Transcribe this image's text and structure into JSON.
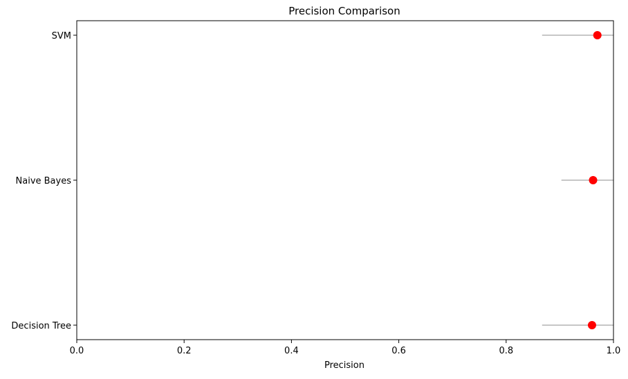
{
  "chart_data": {
    "type": "scatter",
    "title": "Precision Comparison",
    "xlabel": "Precision",
    "ylabel": "",
    "xlim": [
      0.0,
      1.0
    ],
    "x_ticks": [
      "0.0",
      "0.2",
      "0.4",
      "0.6",
      "0.8",
      "1.0"
    ],
    "categories": [
      "Decision Tree",
      "Naive Bayes",
      "SVM"
    ],
    "series": [
      {
        "values": [
          0.96,
          0.962,
          0.97
        ],
        "error_low": [
          0.867,
          0.903,
          0.867
        ],
        "error_high": [
          1.0,
          1.0,
          1.0
        ],
        "marker_color": "#ff0000",
        "errorbar_color": "#b3b3b3"
      }
    ],
    "grid": false,
    "legend": "none"
  }
}
